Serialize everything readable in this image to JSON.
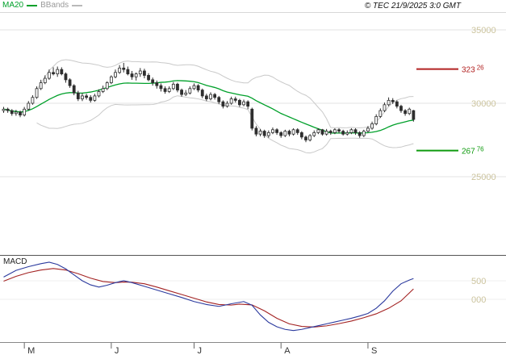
{
  "header": {
    "legend": [
      {
        "label": "MA20",
        "color": "#00a02a"
      },
      {
        "label": "BBands",
        "color": "#b9b9b9"
      }
    ],
    "copyright": "© TEC 21/9/2025 3:0 GMT"
  },
  "macd_label": "MACD",
  "chart_data": {
    "type": "candlestick",
    "x_unit": "trading-day",
    "grid": "horizontal-only",
    "price_axis": {
      "range": [
        24000,
        35300
      ],
      "ticks": [
        {
          "label": "35000",
          "value": 35000
        },
        {
          "label": "30000",
          "value": 30000
        },
        {
          "label": "25000",
          "value": 25000
        }
      ],
      "label_color": "#ccc49e"
    },
    "levels": [
      {
        "name": "resistance",
        "value": 32326,
        "label_main": "323",
        "label_sup": "26",
        "color": "#b22222"
      },
      {
        "name": "support",
        "value": 26776,
        "label_main": "267",
        "label_sup": "76",
        "color": "#0f9b0f"
      }
    ],
    "months": [
      {
        "label": "M",
        "index": 5
      },
      {
        "label": "J",
        "index": 26
      },
      {
        "label": "J",
        "index": 46
      },
      {
        "label": "A",
        "index": 67
      },
      {
        "label": "S",
        "index": 88
      }
    ],
    "indicators": {
      "ma_period": 20,
      "bband_period": 20,
      "bband_stddev": 2,
      "ma_color": "#00a02a",
      "bband_color": "#c9c9c9"
    },
    "candles": [
      [
        29500,
        29750,
        29350,
        29600
      ],
      [
        29600,
        29700,
        29350,
        29500
      ],
      [
        29500,
        29600,
        29150,
        29300
      ],
      [
        29300,
        29550,
        29150,
        29400
      ],
      [
        29400,
        29500,
        29050,
        29200
      ],
      [
        29200,
        29750,
        29100,
        29600
      ],
      [
        29600,
        30150,
        29500,
        30000
      ],
      [
        30000,
        30550,
        29900,
        30400
      ],
      [
        30400,
        31150,
        30300,
        31000
      ],
      [
        31000,
        31600,
        30900,
        31400
      ],
      [
        31400,
        31900,
        31300,
        31700
      ],
      [
        31700,
        32300,
        31600,
        32100
      ],
      [
        32100,
        32450,
        31900,
        32000
      ],
      [
        32000,
        32500,
        31800,
        32300
      ],
      [
        32300,
        32450,
        31900,
        32000
      ],
      [
        32000,
        32100,
        31400,
        31600
      ],
      [
        31600,
        31700,
        31050,
        31200
      ],
      [
        31200,
        31300,
        30550,
        30700
      ],
      [
        30700,
        30850,
        30150,
        30300
      ],
      [
        30300,
        30700,
        30150,
        30500
      ],
      [
        30500,
        30650,
        30250,
        30400
      ],
      [
        30400,
        30550,
        30050,
        30200
      ],
      [
        30200,
        30650,
        30100,
        30500
      ],
      [
        30500,
        30950,
        30400,
        30800
      ],
      [
        30800,
        31200,
        30700,
        31000
      ],
      [
        31000,
        31500,
        30900,
        31400
      ],
      [
        31400,
        31900,
        31300,
        31800
      ],
      [
        31800,
        32300,
        31700,
        32100
      ],
      [
        32100,
        32600,
        32000,
        32400
      ],
      [
        32400,
        32750,
        32100,
        32300
      ],
      [
        32300,
        32500,
        31900,
        32000
      ],
      [
        32000,
        32200,
        31600,
        31800
      ],
      [
        31800,
        32100,
        31550,
        32000
      ],
      [
        32000,
        32400,
        31800,
        32200
      ],
      [
        32200,
        32350,
        31700,
        31900
      ],
      [
        31900,
        32050,
        31500,
        31600
      ],
      [
        31600,
        31750,
        31200,
        31400
      ],
      [
        31400,
        31550,
        31000,
        31200
      ],
      [
        31200,
        31350,
        30800,
        31000
      ],
      [
        31000,
        31150,
        30650,
        30800
      ],
      [
        30800,
        31150,
        30700,
        31000
      ],
      [
        31000,
        31450,
        30900,
        31300
      ],
      [
        31300,
        31400,
        30750,
        30900
      ],
      [
        30900,
        31000,
        30450,
        30600
      ],
      [
        30600,
        30900,
        30500,
        30700
      ],
      [
        30700,
        31150,
        30600,
        31000
      ],
      [
        31000,
        31350,
        30900,
        31200
      ],
      [
        31200,
        31300,
        30750,
        30900
      ],
      [
        30900,
        31000,
        30350,
        30500
      ],
      [
        30500,
        30650,
        30150,
        30300
      ],
      [
        30300,
        30750,
        30200,
        30600
      ],
      [
        30600,
        30700,
        30250,
        30400
      ],
      [
        30400,
        30500,
        29950,
        30100
      ],
      [
        30100,
        30200,
        29650,
        29800
      ],
      [
        29800,
        30150,
        29700,
        30000
      ],
      [
        30000,
        30450,
        29900,
        30300
      ],
      [
        30300,
        30450,
        30050,
        30200
      ],
      [
        30200,
        30300,
        29750,
        29900
      ],
      [
        29900,
        30250,
        29800,
        30100
      ],
      [
        30100,
        30200,
        29600,
        29800
      ],
      [
        29600,
        29700,
        28150,
        28300
      ],
      [
        28300,
        28450,
        27750,
        27900
      ],
      [
        27900,
        28250,
        27750,
        28100
      ],
      [
        28100,
        28200,
        27650,
        27800
      ],
      [
        27800,
        28150,
        27650,
        28000
      ],
      [
        28000,
        28350,
        27900,
        28200
      ],
      [
        28200,
        28300,
        27850,
        28000
      ],
      [
        28000,
        28100,
        27650,
        27800
      ],
      [
        27800,
        28200,
        27700,
        28100
      ],
      [
        28100,
        28200,
        27750,
        27900
      ],
      [
        27900,
        28300,
        27800,
        28200
      ],
      [
        28200,
        28300,
        27850,
        28000
      ],
      [
        28000,
        28100,
        27550,
        27700
      ],
      [
        27700,
        27800,
        27350,
        27500
      ],
      [
        27500,
        27900,
        27400,
        27800
      ],
      [
        27800,
        28150,
        27700,
        28000
      ],
      [
        28000,
        28300,
        27900,
        28200
      ],
      [
        28200,
        28250,
        27800,
        27900
      ],
      [
        27900,
        28250,
        27800,
        28100
      ],
      [
        28100,
        28200,
        27850,
        28000
      ],
      [
        28000,
        28300,
        27900,
        28200
      ],
      [
        28200,
        28300,
        27950,
        28100
      ],
      [
        28100,
        28200,
        27800,
        27900
      ],
      [
        27900,
        28150,
        27800,
        28000
      ],
      [
        28000,
        28300,
        27900,
        28200
      ],
      [
        28200,
        28300,
        27850,
        28000
      ],
      [
        28000,
        28100,
        27650,
        27800
      ],
      [
        27800,
        28200,
        27700,
        28100
      ],
      [
        28100,
        28450,
        28000,
        28300
      ],
      [
        28300,
        28750,
        28200,
        28600
      ],
      [
        28600,
        29250,
        28500,
        29100
      ],
      [
        29100,
        29650,
        29000,
        29500
      ],
      [
        29500,
        30050,
        29400,
        29900
      ],
      [
        29900,
        30400,
        29800,
        30200
      ],
      [
        30200,
        30350,
        29950,
        30100
      ],
      [
        30100,
        30200,
        29650,
        29800
      ],
      [
        29800,
        29900,
        29350,
        29500
      ],
      [
        29500,
        29600,
        29150,
        29300
      ],
      [
        29300,
        29700,
        29200,
        29600
      ],
      [
        29500,
        29550,
        28750,
        28900
      ]
    ],
    "macd_panel": {
      "ticks": [
        {
          "label": "500",
          "value": 500
        },
        {
          "label": "000",
          "value": 0
        }
      ],
      "label_color": "#ccc49e",
      "macd_color": "#2b3a9e",
      "signal_color": "#a32222",
      "macd_points": [
        [
          0,
          600
        ],
        [
          3,
          780
        ],
        [
          6,
          880
        ],
        [
          9,
          960
        ],
        [
          11,
          1000
        ],
        [
          13,
          940
        ],
        [
          15,
          820
        ],
        [
          17,
          660
        ],
        [
          19,
          500
        ],
        [
          21,
          390
        ],
        [
          23,
          330
        ],
        [
          25,
          380
        ],
        [
          27,
          450
        ],
        [
          29,
          500
        ],
        [
          31,
          450
        ],
        [
          34,
          350
        ],
        [
          37,
          250
        ],
        [
          40,
          150
        ],
        [
          43,
          50
        ],
        [
          46,
          -60
        ],
        [
          49,
          -140
        ],
        [
          52,
          -190
        ],
        [
          55,
          -120
        ],
        [
          58,
          -60
        ],
        [
          60,
          -160
        ],
        [
          62,
          -420
        ],
        [
          64,
          -620
        ],
        [
          66,
          -740
        ],
        [
          68,
          -810
        ],
        [
          70,
          -840
        ],
        [
          72,
          -810
        ],
        [
          74,
          -760
        ],
        [
          76,
          -710
        ],
        [
          78,
          -660
        ],
        [
          80,
          -610
        ],
        [
          82,
          -560
        ],
        [
          84,
          -510
        ],
        [
          86,
          -450
        ],
        [
          88,
          -380
        ],
        [
          90,
          -240
        ],
        [
          92,
          -40
        ],
        [
          94,
          220
        ],
        [
          96,
          420
        ],
        [
          98,
          520
        ],
        [
          99,
          560
        ]
      ],
      "signal_points": [
        [
          0,
          490
        ],
        [
          3,
          620
        ],
        [
          6,
          720
        ],
        [
          9,
          790
        ],
        [
          12,
          830
        ],
        [
          15,
          790
        ],
        [
          18,
          690
        ],
        [
          21,
          570
        ],
        [
          24,
          480
        ],
        [
          27,
          450
        ],
        [
          29,
          465
        ],
        [
          31,
          460
        ],
        [
          34,
          420
        ],
        [
          37,
          330
        ],
        [
          40,
          230
        ],
        [
          43,
          130
        ],
        [
          46,
          30
        ],
        [
          49,
          -70
        ],
        [
          52,
          -140
        ],
        [
          55,
          -155
        ],
        [
          57,
          -130
        ],
        [
          60,
          -150
        ],
        [
          63,
          -310
        ],
        [
          66,
          -510
        ],
        [
          69,
          -660
        ],
        [
          72,
          -730
        ],
        [
          75,
          -745
        ],
        [
          78,
          -715
        ],
        [
          81,
          -655
        ],
        [
          84,
          -585
        ],
        [
          87,
          -495
        ],
        [
          90,
          -390
        ],
        [
          93,
          -240
        ],
        [
          96,
          -40
        ],
        [
          99,
          280
        ]
      ]
    }
  }
}
